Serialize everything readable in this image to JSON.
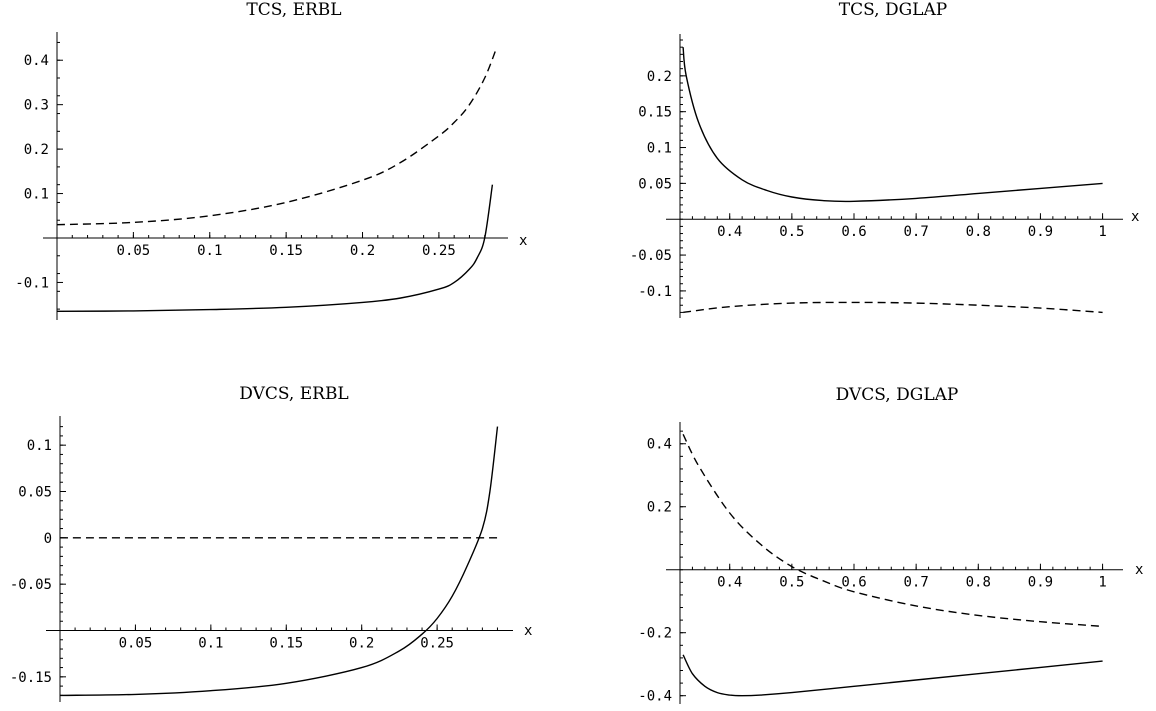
{
  "chart_data": [
    {
      "type": "line",
      "title": "TCS, ERBL",
      "xlabel": "x",
      "ylabel": "",
      "xlim": [
        0,
        0.29
      ],
      "ylim": [
        -0.18,
        0.45
      ],
      "x_ticks": [
        {
          "v": 0.05,
          "label": "0.05"
        },
        {
          "v": 0.1,
          "label": "0.1"
        },
        {
          "v": 0.15,
          "label": "0.15"
        },
        {
          "v": 0.2,
          "label": "0.2"
        },
        {
          "v": 0.25,
          "label": "0.25"
        }
      ],
      "y_ticks": [
        {
          "v": -0.1,
          "label": "-0.1"
        },
        {
          "v": 0.1,
          "label": "0.1"
        },
        {
          "v": 0.2,
          "label": "0.2"
        },
        {
          "v": 0.3,
          "label": "0.3"
        },
        {
          "v": 0.4,
          "label": "0.4"
        }
      ],
      "series": [
        {
          "style": "solid",
          "x": [
            0,
            0.05,
            0.1,
            0.15,
            0.2,
            0.225,
            0.25,
            0.26,
            0.27,
            0.275,
            0.28,
            0.285
          ],
          "y": [
            -0.165,
            -0.164,
            -0.161,
            -0.156,
            -0.145,
            -0.135,
            -0.115,
            -0.1,
            -0.07,
            -0.045,
            0.0,
            0.12
          ]
        },
        {
          "style": "dashed",
          "x": [
            0,
            0.05,
            0.1,
            0.15,
            0.2,
            0.225,
            0.25,
            0.26,
            0.27,
            0.28,
            0.288
          ],
          "y": [
            0.03,
            0.035,
            0.05,
            0.08,
            0.13,
            0.17,
            0.23,
            0.26,
            0.3,
            0.36,
            0.43
          ]
        }
      ]
    },
    {
      "type": "line",
      "title": "TCS, DGLAP",
      "xlabel": "x",
      "ylabel": "",
      "xlim": [
        0.32,
        1.02
      ],
      "ylim": [
        -0.135,
        0.25
      ],
      "x_ticks": [
        {
          "v": 0.4,
          "label": "0.4"
        },
        {
          "v": 0.5,
          "label": "0.5"
        },
        {
          "v": 0.6,
          "label": "0.6"
        },
        {
          "v": 0.7,
          "label": "0.7"
        },
        {
          "v": 0.8,
          "label": "0.8"
        },
        {
          "v": 0.9,
          "label": "0.9"
        },
        {
          "v": 1.0,
          "label": "1"
        }
      ],
      "y_ticks": [
        {
          "v": -0.1,
          "label": "-0.1"
        },
        {
          "v": -0.05,
          "label": "-0.05"
        },
        {
          "v": 0.05,
          "label": "0.05"
        },
        {
          "v": 0.1,
          "label": "0.1"
        },
        {
          "v": 0.15,
          "label": "0.15"
        },
        {
          "v": 0.2,
          "label": "0.2"
        }
      ],
      "series": [
        {
          "style": "solid",
          "x": [
            0.325,
            0.33,
            0.35,
            0.38,
            0.42,
            0.46,
            0.5,
            0.55,
            0.6,
            0.7,
            0.8,
            0.9,
            1.0
          ],
          "y": [
            0.24,
            0.2,
            0.135,
            0.085,
            0.055,
            0.04,
            0.031,
            0.026,
            0.025,
            0.029,
            0.036,
            0.043,
            0.05
          ]
        },
        {
          "style": "dashed",
          "x": [
            0.325,
            0.4,
            0.5,
            0.6,
            0.7,
            0.8,
            0.9,
            1.0
          ],
          "y": [
            -0.13,
            -0.122,
            -0.117,
            -0.116,
            -0.117,
            -0.12,
            -0.124,
            -0.13
          ]
        }
      ]
    },
    {
      "type": "line",
      "title": "DVCS, ERBL",
      "xlabel": "x",
      "ylabel": "",
      "xlim": [
        0,
        0.295
      ],
      "ylim": [
        -0.175,
        0.125
      ],
      "x_ticks": [
        {
          "v": 0.05,
          "label": "0.05"
        },
        {
          "v": 0.1,
          "label": "0.1"
        },
        {
          "v": 0.15,
          "label": "0.15"
        },
        {
          "v": 0.2,
          "label": "0.2"
        },
        {
          "v": 0.25,
          "label": "0.25"
        }
      ],
      "y_ticks": [
        {
          "v": -0.15,
          "label": "-0.15"
        },
        {
          "v": -0.1,
          "label": ""
        },
        {
          "v": -0.05,
          "label": "-0.05"
        },
        {
          "v": 0,
          "label": "0"
        },
        {
          "v": 0.05,
          "label": "0.05"
        },
        {
          "v": 0.1,
          "label": "0.1"
        }
      ],
      "series": [
        {
          "style": "solid",
          "x": [
            0,
            0.05,
            0.1,
            0.15,
            0.2,
            0.225,
            0.24,
            0.25,
            0.26,
            0.27,
            0.28,
            0.285,
            0.29
          ],
          "y": [
            -0.17,
            -0.169,
            -0.165,
            -0.157,
            -0.14,
            -0.122,
            -0.104,
            -0.087,
            -0.063,
            -0.03,
            0.01,
            0.05,
            0.12
          ]
        },
        {
          "style": "dashed",
          "x": [
            0,
            0.29
          ],
          "y": [
            0,
            0
          ]
        }
      ]
    },
    {
      "type": "line",
      "title": "DVCS, DGLAP",
      "xlabel": "x",
      "ylabel": "",
      "xlim": [
        0.32,
        1.02
      ],
      "ylim": [
        -0.42,
        0.45
      ],
      "x_ticks": [
        {
          "v": 0.4,
          "label": "0.4"
        },
        {
          "v": 0.5,
          "label": "0.5"
        },
        {
          "v": 0.6,
          "label": "0.6"
        },
        {
          "v": 0.7,
          "label": "0.7"
        },
        {
          "v": 0.8,
          "label": "0.8"
        },
        {
          "v": 0.9,
          "label": "0.9"
        },
        {
          "v": 1.0,
          "label": "1"
        }
      ],
      "y_ticks": [
        {
          "v": -0.4,
          "label": "-0.4"
        },
        {
          "v": -0.2,
          "label": "-0.2"
        },
        {
          "v": 0.2,
          "label": "0.2"
        },
        {
          "v": 0.4,
          "label": "0.4"
        }
      ],
      "series": [
        {
          "style": "solid",
          "x": [
            0.325,
            0.34,
            0.36,
            0.38,
            0.4,
            0.42,
            0.45,
            0.5,
            0.6,
            0.7,
            0.8,
            0.9,
            1.0
          ],
          "y": [
            -0.27,
            -0.33,
            -0.37,
            -0.39,
            -0.398,
            -0.4,
            -0.398,
            -0.39,
            -0.37,
            -0.35,
            -0.33,
            -0.31,
            -0.29
          ]
        },
        {
          "style": "dashed",
          "x": [
            0.325,
            0.35,
            0.4,
            0.45,
            0.5,
            0.55,
            0.6,
            0.7,
            0.8,
            0.9,
            1.0
          ],
          "y": [
            0.43,
            0.33,
            0.18,
            0.08,
            0.01,
            -0.035,
            -0.07,
            -0.115,
            -0.145,
            -0.165,
            -0.18
          ]
        }
      ]
    }
  ]
}
